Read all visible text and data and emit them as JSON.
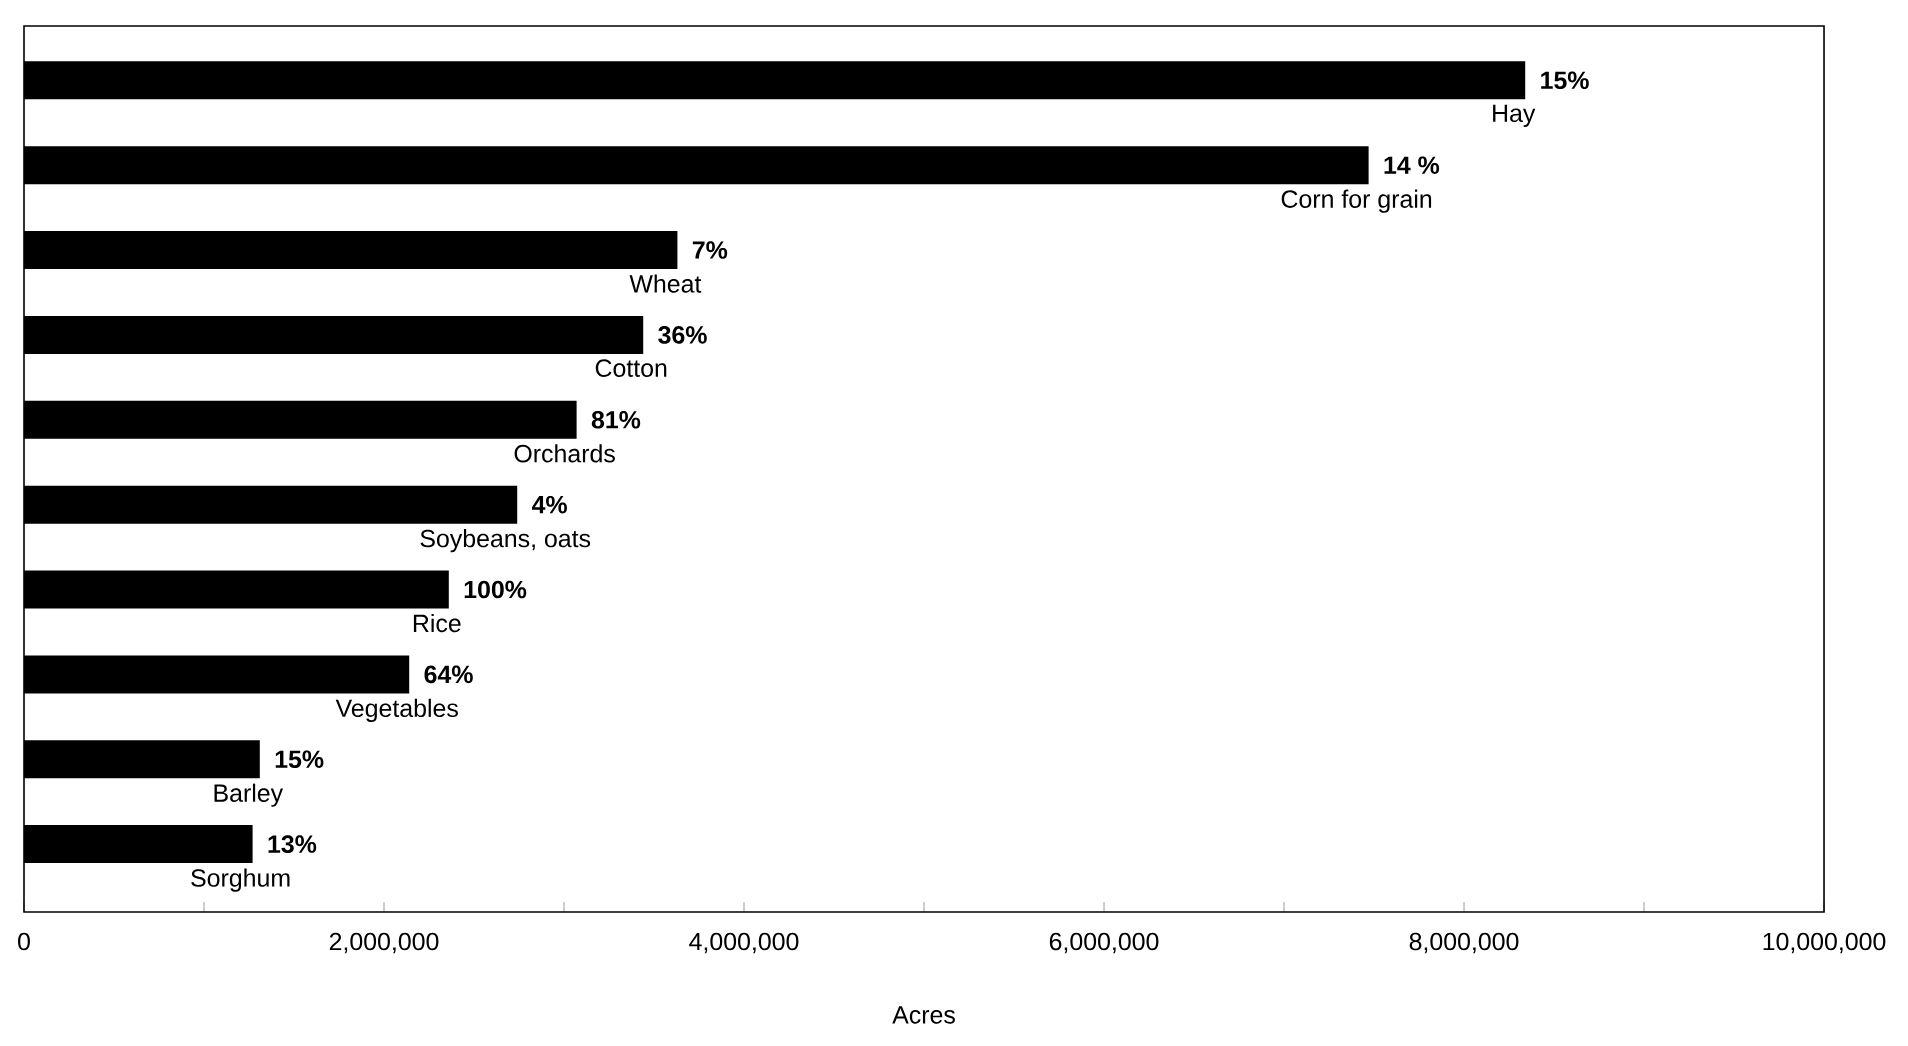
{
  "chart_data": {
    "type": "bar",
    "orientation": "horizontal",
    "xlabel": "Acres",
    "categories": [
      "Hay",
      "Corn for grain",
      "Wheat",
      "Cotton",
      "Orchards",
      "Soybeans, oats",
      "Rice",
      "Vegetables",
      "Barley",
      "Sorghum"
    ],
    "values": [
      8340000,
      7470000,
      3630000,
      3440000,
      3070000,
      2740000,
      2360000,
      2140000,
      1310000,
      1270000
    ],
    "annotations": [
      "15%",
      "14 %",
      "7%",
      "36%",
      "81%",
      "4%",
      "100%",
      "64%",
      "15%",
      "13%"
    ],
    "grid": false,
    "color": "#000000",
    "xlim": [
      0,
      10000000
    ],
    "xticks": [
      {
        "value": 0,
        "label": "0"
      },
      {
        "value": 1000000,
        "label": null
      },
      {
        "value": 2000000,
        "label": "2,000,000"
      },
      {
        "value": 3000000,
        "label": null
      },
      {
        "value": 4000000,
        "label": "4,000,000"
      },
      {
        "value": 5000000,
        "label": null
      },
      {
        "value": 6000000,
        "label": "6,000,000"
      },
      {
        "value": 7000000,
        "label": null
      },
      {
        "value": 8000000,
        "label": "8,000,000"
      },
      {
        "value": 9000000,
        "label": null
      },
      {
        "value": 10000000,
        "label": "10,000,000"
      }
    ]
  }
}
